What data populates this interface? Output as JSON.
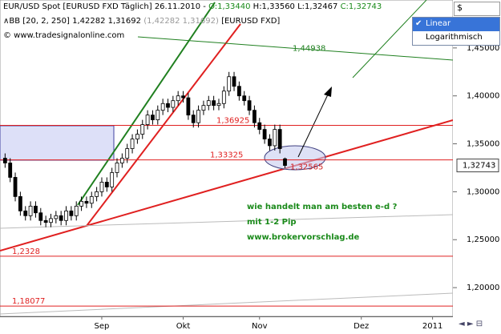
{
  "header": {
    "title": "EUR/USD Spot [EURUSD FXD  Täglich] 26.11.2010 -",
    "open": "O:1,33440",
    "high_low": "H:1,33560 L:1,32467",
    "close": "C:1,32743",
    "indicator": "BB [20, 2, 250]",
    "indicator_values": "1,42282 1,31692",
    "indicator_values_grey": "(1,42282 1,31692)",
    "indicator_symbol": "[EURUSD FXD]",
    "copyright": "© www.tradesignalonline.com"
  },
  "chart_data": {
    "type": "candlestick",
    "x": [
      0,
      1,
      2,
      3,
      4,
      5,
      6,
      7,
      8,
      9,
      10,
      11,
      12,
      13,
      14,
      15,
      16,
      17,
      18,
      19,
      20,
      21,
      22,
      23,
      24,
      25,
      26,
      27,
      28,
      29,
      30,
      31,
      32,
      33,
      34,
      35,
      36,
      37,
      38,
      39,
      40,
      41,
      42,
      43,
      44,
      45,
      46,
      47,
      48,
      49,
      50,
      51,
      52,
      53,
      54,
      55
    ],
    "open": [
      1.335,
      1.33,
      1.315,
      1.295,
      1.28,
      1.275,
      1.285,
      1.278,
      1.27,
      1.268,
      1.272,
      1.275,
      1.27,
      1.28,
      1.275,
      1.285,
      1.29,
      1.288,
      1.295,
      1.3,
      1.31,
      1.305,
      1.32,
      1.33,
      1.335,
      1.345,
      1.355,
      1.36,
      1.37,
      1.38,
      1.375,
      1.385,
      1.392,
      1.388,
      1.395,
      1.4,
      1.398,
      1.38,
      1.372,
      1.385,
      1.39,
      1.395,
      1.39,
      1.392,
      1.405,
      1.42,
      1.41,
      1.4,
      1.395,
      1.385,
      1.372,
      1.365,
      1.355,
      1.348,
      1.365,
      1.3344
    ],
    "high": [
      1.34,
      1.335,
      1.32,
      1.3,
      1.285,
      1.29,
      1.29,
      1.283,
      1.275,
      1.277,
      1.28,
      1.28,
      1.285,
      1.285,
      1.29,
      1.295,
      1.295,
      1.3,
      1.305,
      1.315,
      1.315,
      1.325,
      1.335,
      1.34,
      1.35,
      1.36,
      1.365,
      1.375,
      1.385,
      1.385,
      1.39,
      1.397,
      1.397,
      1.4,
      1.405,
      1.405,
      1.403,
      1.385,
      1.39,
      1.395,
      1.4,
      1.4,
      1.397,
      1.41,
      1.425,
      1.425,
      1.415,
      1.405,
      1.4,
      1.39,
      1.377,
      1.37,
      1.36,
      1.37,
      1.37,
      1.3356
    ],
    "low": [
      1.325,
      1.31,
      1.29,
      1.275,
      1.27,
      1.27,
      1.273,
      1.265,
      1.263,
      1.263,
      1.267,
      1.265,
      1.265,
      1.27,
      1.27,
      1.28,
      1.283,
      1.283,
      1.29,
      1.295,
      1.3,
      1.3,
      1.315,
      1.325,
      1.33,
      1.34,
      1.35,
      1.355,
      1.365,
      1.37,
      1.37,
      1.38,
      1.383,
      1.383,
      1.39,
      1.393,
      1.375,
      1.367,
      1.367,
      1.38,
      1.385,
      1.385,
      1.385,
      1.387,
      1.4,
      1.405,
      1.395,
      1.39,
      1.38,
      1.367,
      1.36,
      1.35,
      1.343,
      1.343,
      1.34,
      1.32467
    ],
    "close": [
      1.33,
      1.315,
      1.295,
      1.28,
      1.275,
      1.285,
      1.278,
      1.27,
      1.268,
      1.272,
      1.275,
      1.27,
      1.28,
      1.275,
      1.285,
      1.29,
      1.288,
      1.295,
      1.3,
      1.31,
      1.305,
      1.32,
      1.33,
      1.335,
      1.345,
      1.355,
      1.36,
      1.37,
      1.38,
      1.375,
      1.385,
      1.392,
      1.388,
      1.395,
      1.4,
      1.398,
      1.38,
      1.372,
      1.385,
      1.39,
      1.395,
      1.39,
      1.392,
      1.405,
      1.42,
      1.41,
      1.4,
      1.395,
      1.385,
      1.372,
      1.365,
      1.355,
      1.348,
      1.365,
      1.345,
      1.32743
    ],
    "up_color": "#ffffff",
    "down_color": "#000000",
    "xlim": [
      -1,
      88
    ],
    "xticks": [
      {
        "value": 19,
        "label": "Sep"
      },
      {
        "value": 35,
        "label": "Okt"
      },
      {
        "value": 50,
        "label": "Nov"
      },
      {
        "value": 70,
        "label": "Dez"
      },
      {
        "value": 84,
        "label": "2011"
      }
    ],
    "ylim": [
      1.17,
      1.5
    ],
    "yticks": [
      {
        "value": 1.45,
        "label": "1,45000"
      },
      {
        "value": 1.4,
        "label": "1,40000"
      },
      {
        "value": 1.35,
        "label": "1,35000"
      },
      {
        "value": 1.3,
        "label": "1,30000"
      },
      {
        "value": 1.25,
        "label": "1,25000"
      },
      {
        "value": 1.2,
        "label": "1,20000"
      }
    ],
    "levels": [
      {
        "value": 1.36925,
        "label": "1,36925"
      },
      {
        "value": 1.33325,
        "label": "1,33325"
      },
      {
        "value": 1.2328,
        "label": "1,2328"
      },
      {
        "value": 1.18077,
        "label": "1,18077"
      }
    ],
    "level_color": "#e02020",
    "price_labels": [
      {
        "value": 1.44938,
        "label": "1,44938",
        "color": "#208020"
      },
      {
        "value": 1.32565,
        "label": "1,32565",
        "color": "#d02020"
      }
    ],
    "last_price": {
      "value": 1.32743,
      "label": "1,32743"
    },
    "annotations": [
      "wie handelt man am besten e-d ?",
      "mit 1-2 Pip",
      "www.brokervorschlag.de"
    ],
    "scale_menu": {
      "options": [
        "Linear",
        "Logarithmisch"
      ],
      "selected": 0
    },
    "currency": "$"
  }
}
